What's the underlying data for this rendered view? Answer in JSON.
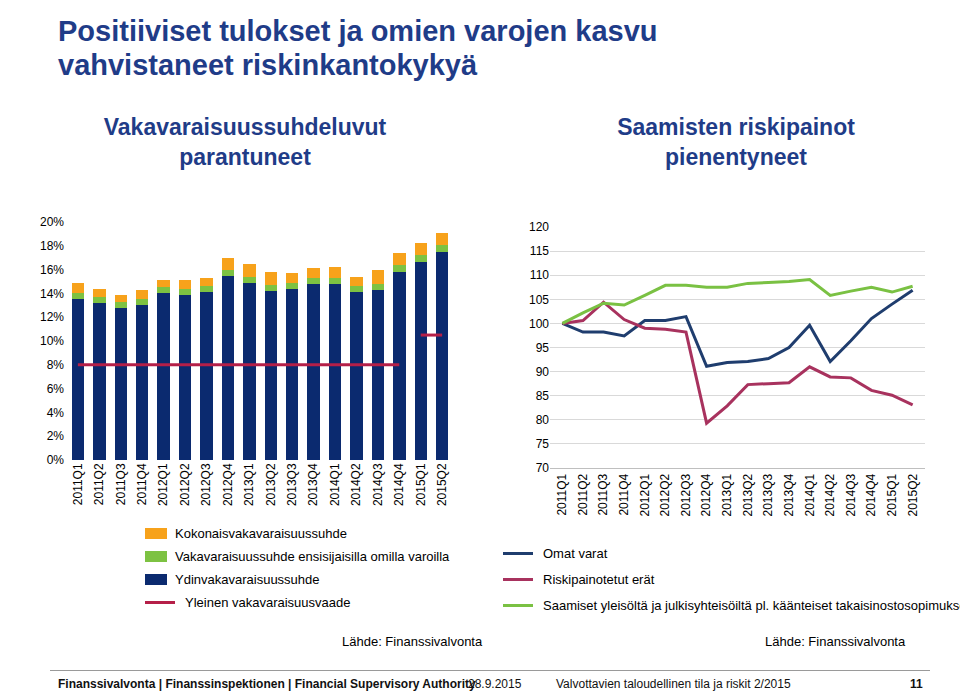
{
  "slide": {
    "title": [
      "Positiiviset tulokset ja omien varojen kasvu",
      "vahvistaneet riskinkantokykyä"
    ]
  },
  "chart_data": [
    {
      "type": "bar",
      "title": [
        "Vakavaraisuussuhdeluvut",
        "parantuneet"
      ],
      "stacked": true,
      "grid": false,
      "source": "Lähde: Finanssivalvonta",
      "categories": [
        "2011Q1",
        "2011Q2",
        "2011Q3",
        "2011Q4",
        "2012Q1",
        "2012Q2",
        "2012Q3",
        "2012Q4",
        "2013Q1",
        "2013Q2",
        "2013Q3",
        "2013Q4",
        "2014Q1",
        "2014Q2",
        "2014Q3",
        "2014Q4",
        "2015Q1",
        "2015Q2"
      ],
      "ylim": [
        0,
        20
      ],
      "yticks": [
        {
          "value": 0,
          "label": "0%"
        },
        {
          "value": 2,
          "label": "2%"
        },
        {
          "value": 4,
          "label": "4%"
        },
        {
          "value": 6,
          "label": "6%"
        },
        {
          "value": 8,
          "label": "8%"
        },
        {
          "value": 10,
          "label": "10%"
        },
        {
          "value": 12,
          "label": "12%"
        },
        {
          "value": 14,
          "label": "14%"
        },
        {
          "value": 16,
          "label": "16%"
        },
        {
          "value": 18,
          "label": "18%"
        },
        {
          "value": 20,
          "label": "20%"
        }
      ],
      "series": [
        {
          "name": "Ydinvakavaraisuussuhde",
          "type": "bar",
          "color": "#0b2a6f",
          "values": [
            13.5,
            13.2,
            12.8,
            13.0,
            14.0,
            13.9,
            14.1,
            15.5,
            14.9,
            14.2,
            14.4,
            14.8,
            14.8,
            14.1,
            14.3,
            15.8,
            16.6,
            17.5
          ]
        },
        {
          "name": "Vakavaraisuussuhde ensisijaisilla omilla varoilla",
          "type": "bar",
          "color": "#7dc242",
          "values": [
            0.5,
            0.5,
            0.5,
            0.5,
            0.5,
            0.5,
            0.5,
            0.5,
            0.5,
            0.5,
            0.5,
            0.5,
            0.5,
            0.5,
            0.5,
            0.6,
            0.6,
            0.6
          ]
        },
        {
          "name": "Kokonaisvakavaraisuussuhde",
          "type": "bar",
          "color": "#f7a21b",
          "values": [
            0.9,
            0.7,
            0.6,
            0.8,
            0.6,
            0.7,
            0.7,
            1.0,
            1.1,
            1.1,
            0.8,
            0.8,
            0.9,
            0.8,
            1.2,
            1.0,
            1.0,
            1.0
          ]
        },
        {
          "name": "Yleinen vakavaraisuusvaade",
          "type": "line",
          "color": "#b51f48",
          "values": [
            8,
            8,
            8,
            8,
            8,
            8,
            8,
            8,
            8,
            8,
            8,
            8,
            8,
            8,
            8,
            8,
            10.5,
            10.5
          ]
        }
      ]
    },
    {
      "type": "line",
      "title": [
        "Saamisten riskipainot",
        "pienentyneet"
      ],
      "grid": true,
      "source": "Lähde: Finanssivalvonta",
      "categories": [
        "2011Q1",
        "2011Q2",
        "2011Q3",
        "2011Q4",
        "2012Q1",
        "2012Q2",
        "2012Q3",
        "2012Q4",
        "2013Q1",
        "2013Q2",
        "2013Q3",
        "2013Q4",
        "2014Q1",
        "2014Q2",
        "2014Q3",
        "2014Q4",
        "2015Q1",
        "2015Q2"
      ],
      "ylim": [
        70,
        120
      ],
      "yticks": [
        70,
        75,
        80,
        85,
        90,
        95,
        100,
        105,
        110,
        115,
        120
      ],
      "series": [
        {
          "name": "Omat varat",
          "color": "#1f3d6e",
          "values": [
            100,
            98.2,
            98.2,
            97.4,
            100.6,
            100.6,
            101.4,
            91.1,
            91.9,
            92.1,
            92.7,
            95.0,
            99.6,
            92.1,
            96.4,
            101.0,
            104.0,
            106.9
          ]
        },
        {
          "name": "Riskipainotetut erät",
          "color": "#a8325e",
          "values": [
            100,
            100.6,
            104.4,
            100.8,
            99.0,
            98.8,
            98.2,
            79.3,
            82.9,
            87.3,
            87.5,
            87.7,
            91.0,
            88.9,
            88.7,
            86.1,
            85.1,
            83.1
          ]
        },
        {
          "name": "Saamiset yleisöltä ja julkisyhteisöiltä pl. käänteiset takaisinostosopimukset",
          "color": "#7ac143",
          "values": [
            100,
            102.2,
            104.2,
            103.8,
            105.8,
            107.9,
            107.9,
            107.5,
            107.5,
            108.3,
            108.5,
            108.7,
            109.1,
            105.8,
            106.7,
            107.5,
            106.5,
            107.7
          ]
        }
      ]
    }
  ],
  "footer": {
    "organisation": "Finanssivalvonta | Finanssinspektionen | Financial Supervisory Authority",
    "date": "28.9.2015",
    "report": "Valvottavien taloudellinen tila ja riskit 2/2015",
    "page": "11"
  }
}
